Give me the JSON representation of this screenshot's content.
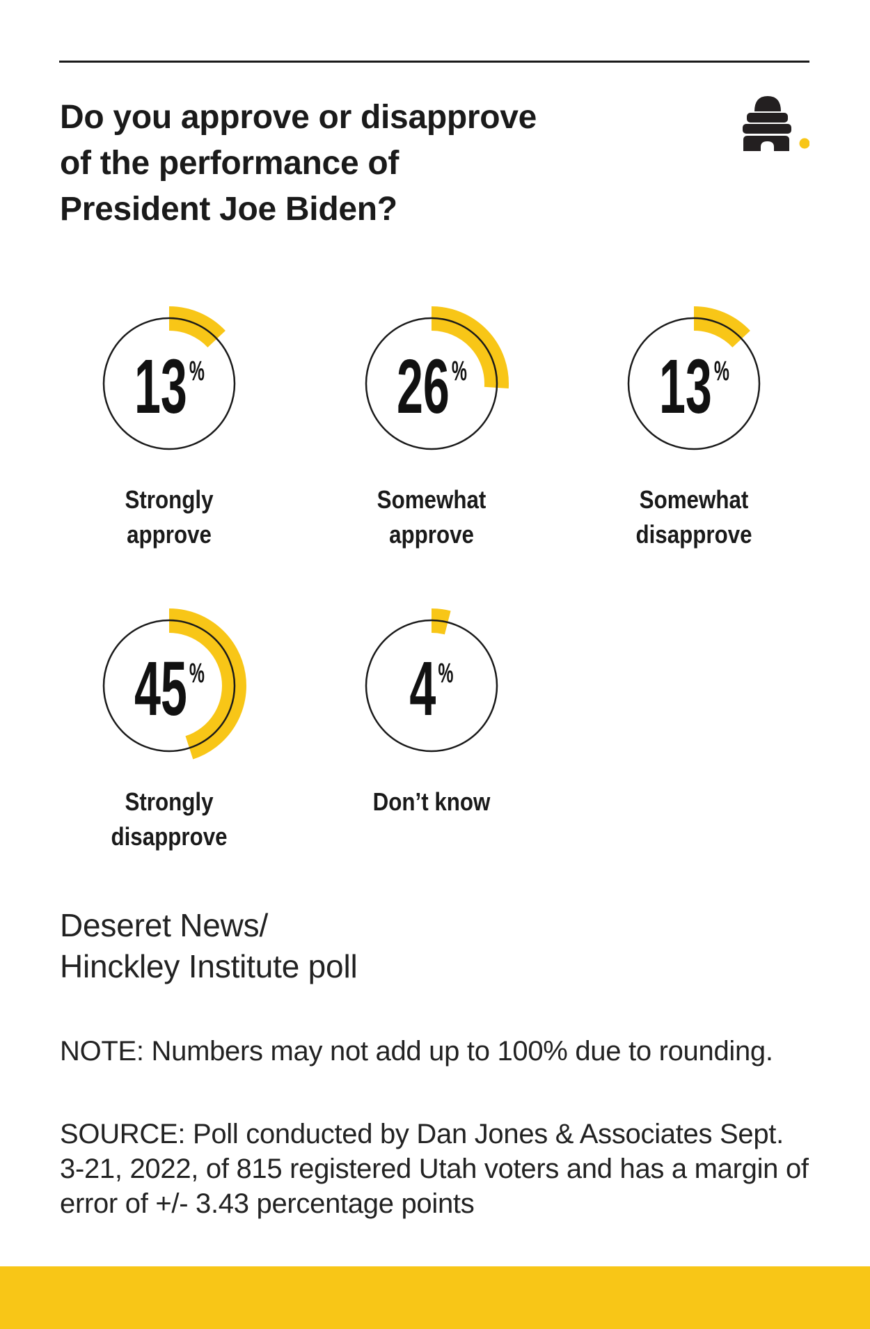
{
  "colors": {
    "yellow": "#F8C617",
    "ink": "#1A1A1A",
    "bee_black": "#231F20"
  },
  "header": {
    "title_lines": [
      "Do you approve or disapprove",
      "of the performance of",
      "President Joe Biden?"
    ]
  },
  "chart_data": {
    "type": "pie",
    "variant": "circular gauge ring per category, arc starts at 12 o'clock and sweeps clockwise",
    "title": "Do you approve or disapprove of the performance of President Joe Biden?",
    "unit": "%",
    "categories": [
      "Strongly approve",
      "Somewhat approve",
      "Somewhat disapprove",
      "Strongly disapprove",
      "Don’t know"
    ],
    "values": [
      13,
      26,
      13,
      45,
      4
    ],
    "series": [
      {
        "value": 13,
        "label_lines": [
          "Strongly",
          "approve"
        ]
      },
      {
        "value": 26,
        "label_lines": [
          "Somewhat",
          "approve"
        ]
      },
      {
        "value": 13,
        "label_lines": [
          "Somewhat",
          "disapprove"
        ]
      },
      {
        "value": 45,
        "label_lines": [
          "Strongly",
          "disapprove"
        ]
      },
      {
        "value": 4,
        "label_lines": [
          "Don’t know"
        ]
      }
    ],
    "ring_color": "#F8C617",
    "outline_color": "#1A1A1A",
    "legend_position": "labels below each gauge",
    "grid": false
  },
  "footer": {
    "attribution_lines": [
      "Deseret News/",
      "Hinckley Institute poll"
    ],
    "note": "NOTE: Numbers may not add up to 100% due to rounding.",
    "source_lines": [
      "SOURCE: Poll conducted by Dan Jones & Associates Sept.",
      "3-21, 2022, of 815 registered Utah voters and has a margin of",
      "error of +/- 3.43 percentage points"
    ]
  }
}
